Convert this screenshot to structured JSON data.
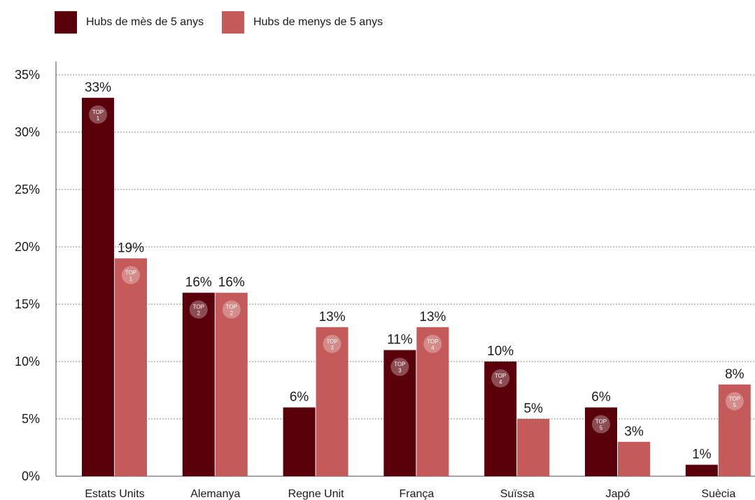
{
  "legend": [
    {
      "label": "Hubs de mès de 5 anys",
      "color": "#5a000a"
    },
    {
      "label": "Hubs de menys de 5 anys",
      "color": "#c45a5a"
    }
  ],
  "badge_prefix": "TOP",
  "chart_data": {
    "type": "bar",
    "title": "",
    "xlabel": "",
    "ylabel": "",
    "ylim": [
      0,
      35
    ],
    "yticks": [
      "0%",
      "5%",
      "10%",
      "15%",
      "20%",
      "25%",
      "30%",
      "35%"
    ],
    "ytick_values": [
      0,
      5,
      10,
      15,
      20,
      25,
      30,
      35
    ],
    "grid": "horizontal dotted",
    "legend_position": "top-left",
    "categories": [
      "Estats Units",
      "Alemanya",
      "Regne Unit",
      "França",
      "Suïssa",
      "Japó",
      "Suècia"
    ],
    "series": [
      {
        "name": "Hubs de mès de 5 anys",
        "color": "#5a000a",
        "values": [
          33,
          16,
          6,
          11,
          10,
          6,
          1
        ],
        "labels": [
          "33%",
          "16%",
          "6%",
          "11%",
          "10%",
          "6%",
          "1%"
        ],
        "ranks": [
          1,
          2,
          null,
          3,
          4,
          5,
          null
        ]
      },
      {
        "name": "Hubs de menys de 5 anys",
        "color": "#c45a5a",
        "values": [
          19,
          16,
          13,
          13,
          5,
          3,
          8
        ],
        "labels": [
          "19%",
          "16%",
          "13%",
          "13%",
          "5%",
          "3%",
          "8%"
        ],
        "ranks": [
          1,
          2,
          3,
          4,
          null,
          null,
          5
        ]
      }
    ]
  }
}
